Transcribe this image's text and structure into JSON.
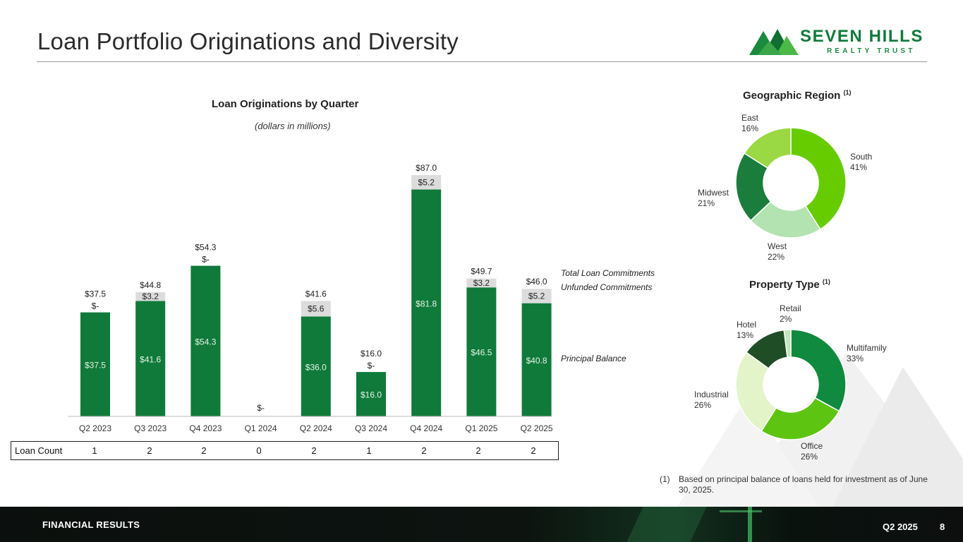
{
  "title": "Loan Portfolio Originations and Diversity",
  "logo": {
    "name": "SEVEN HILLS",
    "subtitle": "REALTY TRUST"
  },
  "chart_data": [
    {
      "type": "bar",
      "stacked": true,
      "title": "Loan Originations by Quarter",
      "subtitle": "(dollars in millions)",
      "categories": [
        "Q2 2023",
        "Q3 2023",
        "Q4 2023",
        "Q1 2024",
        "Q2 2024",
        "Q3 2024",
        "Q4 2024",
        "Q1 2025",
        "Q2 2025"
      ],
      "series": [
        {
          "name": "Principal Balance",
          "color": "#0f7a3a",
          "values": [
            37.5,
            41.6,
            54.3,
            0,
            36.0,
            16.0,
            81.8,
            46.5,
            40.8
          ],
          "labels": [
            "$37.5",
            "$41.6",
            "$54.3",
            "",
            "$36.0",
            "$16.0",
            "$81.8",
            "$46.5",
            "$40.8"
          ]
        },
        {
          "name": "Unfunded Commitments",
          "color": "#dcdcdc",
          "values": [
            0,
            3.2,
            0,
            0,
            5.6,
            0,
            5.2,
            3.2,
            5.2
          ],
          "labels": [
            "$-",
            "$3.2",
            "$-",
            "",
            "$5.6",
            "$-",
            "$5.2",
            "$3.2",
            "$5.2"
          ]
        }
      ],
      "totals": [
        37.5,
        44.8,
        54.3,
        0,
        41.6,
        16.0,
        87.0,
        49.7,
        46.0
      ],
      "total_labels": [
        "$37.5",
        "$44.8",
        "$54.3",
        "$-",
        "$41.6",
        "$16.0",
        "$87.0",
        "$49.7",
        "$46.0"
      ],
      "legend": [
        "Total Loan Commitments",
        "Unfunded Commitments",
        "Principal Balance"
      ],
      "ylim": [
        0,
        90
      ],
      "xlabel": "",
      "ylabel": ""
    },
    {
      "type": "pie",
      "donut": true,
      "title": "Geographic Region",
      "title_note": "(1)",
      "slices": [
        {
          "label": "South",
          "value": 41,
          "pct": "41%",
          "color": "#66cc00"
        },
        {
          "label": "West",
          "value": 22,
          "pct": "22%",
          "color": "#b2e3b0"
        },
        {
          "label": "Midwest",
          "value": 21,
          "pct": "21%",
          "color": "#1b7d3c"
        },
        {
          "label": "East",
          "value": 16,
          "pct": "16%",
          "color": "#9bd944"
        }
      ]
    },
    {
      "type": "pie",
      "donut": true,
      "title": "Property Type",
      "title_note": "(1)",
      "slices": [
        {
          "label": "Multifamily",
          "value": 33,
          "pct": "33%",
          "color": "#108a3e"
        },
        {
          "label": "Office",
          "value": 26,
          "pct": "26%",
          "color": "#5ec412"
        },
        {
          "label": "Industrial",
          "value": 26,
          "pct": "26%",
          "color": "#e2f4c8"
        },
        {
          "label": "Hotel",
          "value": 13,
          "pct": "13%",
          "color": "#1e4d26"
        },
        {
          "label": "Retail",
          "value": 2,
          "pct": "2%",
          "color": "#c0e8b8"
        }
      ]
    }
  ],
  "loan_count": {
    "label": "Loan Count",
    "values": [
      "1",
      "2",
      "2",
      "0",
      "2",
      "1",
      "2",
      "2",
      "2"
    ]
  },
  "footnote": {
    "number": "(1)",
    "text": "Based on principal balance of loans held for investment as of June 30, 2025."
  },
  "footer": {
    "section": "FINANCIAL RESULTS",
    "quarter": "Q2 2025",
    "page": "8"
  }
}
